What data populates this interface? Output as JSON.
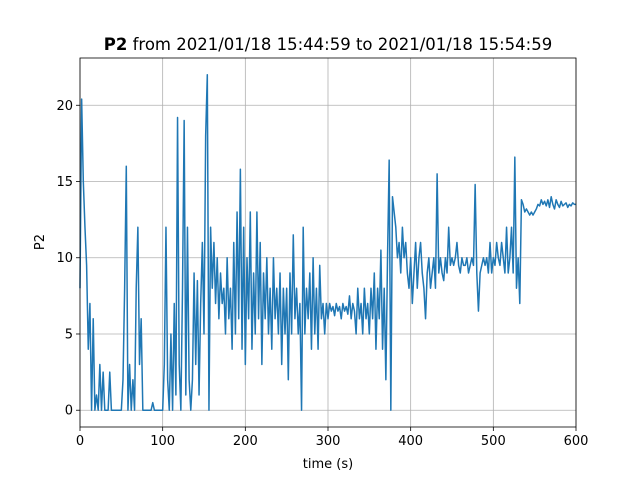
{
  "chart_data": {
    "type": "line",
    "title_parts": [
      "P2",
      "from 2021/01/18 15:44:59 to 2021/01/18 15:54:59"
    ],
    "x_label": "time (s)",
    "y_label": "P2",
    "color": "#1f77b4",
    "grid": true,
    "xlim": [
      0,
      600
    ],
    "ylim": [
      -1.1,
      23.1
    ],
    "xticks": [
      0,
      100,
      200,
      300,
      400,
      500,
      600
    ],
    "yticks": [
      0,
      5,
      10,
      15,
      20
    ],
    "x": [
      0,
      2,
      4,
      6,
      8,
      10,
      12,
      14,
      16,
      18,
      20,
      22,
      24,
      26,
      28,
      30,
      32,
      34,
      36,
      38,
      40,
      42,
      44,
      46,
      48,
      50,
      52,
      54,
      56,
      58,
      60,
      62,
      64,
      66,
      68,
      70,
      72,
      74,
      76,
      78,
      80,
      82,
      84,
      86,
      88,
      90,
      92,
      94,
      96,
      98,
      100,
      102,
      104,
      106,
      108,
      110,
      112,
      114,
      116,
      118,
      120,
      122,
      124,
      126,
      128,
      130,
      132,
      134,
      136,
      138,
      140,
      142,
      144,
      146,
      148,
      150,
      152,
      154,
      156,
      158,
      160,
      162,
      164,
      166,
      168,
      170,
      172,
      174,
      176,
      178,
      180,
      182,
      184,
      186,
      188,
      190,
      192,
      194,
      196,
      198,
      200,
      202,
      204,
      206,
      208,
      210,
      212,
      214,
      216,
      218,
      220,
      222,
      224,
      226,
      228,
      230,
      232,
      234,
      236,
      238,
      240,
      242,
      244,
      246,
      248,
      250,
      252,
      254,
      256,
      258,
      260,
      262,
      264,
      266,
      268,
      270,
      272,
      274,
      276,
      278,
      280,
      282,
      284,
      286,
      288,
      290,
      292,
      294,
      296,
      298,
      300,
      302,
      304,
      306,
      308,
      310,
      312,
      314,
      316,
      318,
      320,
      322,
      324,
      326,
      328,
      330,
      332,
      334,
      336,
      338,
      340,
      342,
      344,
      346,
      348,
      350,
      352,
      354,
      356,
      358,
      360,
      362,
      364,
      366,
      368,
      370,
      372,
      374,
      376,
      378,
      380,
      382,
      384,
      386,
      388,
      390,
      392,
      394,
      396,
      398,
      400,
      402,
      404,
      406,
      408,
      410,
      412,
      414,
      416,
      418,
      420,
      422,
      424,
      426,
      428,
      430,
      432,
      434,
      436,
      438,
      440,
      442,
      444,
      446,
      448,
      450,
      452,
      454,
      456,
      458,
      460,
      462,
      464,
      466,
      468,
      470,
      472,
      474,
      476,
      478,
      480,
      482,
      484,
      486,
      488,
      490,
      492,
      494,
      496,
      498,
      500,
      502,
      504,
      506,
      508,
      510,
      512,
      514,
      516,
      518,
      520,
      522,
      524,
      526,
      528,
      530,
      532,
      534,
      536,
      538,
      540,
      542,
      544,
      546,
      548,
      550,
      552,
      554,
      556,
      558,
      560,
      562,
      564,
      566,
      568,
      570,
      572,
      574,
      576,
      578,
      580,
      582,
      584,
      586,
      588,
      590,
      592,
      594,
      596,
      598,
      600
    ],
    "values": [
      8,
      20.4,
      15,
      12,
      9.5,
      4,
      7,
      0,
      6,
      0,
      1,
      0,
      3,
      0,
      2.5,
      0,
      0,
      0,
      2.5,
      0,
      0,
      0,
      0,
      0,
      0,
      0,
      2,
      8,
      16,
      0,
      3,
      0,
      2,
      0,
      8,
      12,
      3,
      6,
      0,
      0,
      0,
      0,
      0,
      0,
      0.5,
      0,
      0,
      0,
      0,
      0,
      0,
      3,
      12,
      2,
      0,
      5,
      0,
      7,
      1,
      19.2,
      3,
      0,
      8,
      19,
      1,
      12,
      2,
      0,
      2,
      9,
      3,
      8.5,
      1,
      7,
      11,
      5,
      18,
      22,
      0,
      12,
      8,
      11,
      7,
      10,
      6,
      9,
      7,
      8,
      5,
      10,
      6,
      8,
      4,
      11,
      5,
      13,
      6,
      15.8,
      4,
      12,
      3,
      10,
      6,
      13,
      4,
      9,
      5,
      13,
      6,
      11,
      3,
      9,
      6,
      10,
      5,
      8,
      4,
      10,
      6,
      8,
      5,
      9,
      3,
      8,
      5,
      8,
      2,
      9,
      5,
      11.5,
      6,
      8,
      5,
      7,
      0,
      12,
      5,
      8,
      6,
      9,
      4,
      10,
      5,
      8,
      4,
      9.5,
      6,
      7,
      5,
      7,
      6,
      7,
      6.5,
      6.8,
      6.2,
      7,
      6.5,
      6.8,
      6,
      7,
      6.5,
      6.8,
      6.3,
      7.5,
      6,
      7,
      6.5,
      5,
      8,
      6,
      7,
      5,
      8,
      6,
      7,
      5,
      8,
      6,
      9,
      4,
      8,
      6,
      10.5,
      4,
      8,
      2,
      10,
      16.4,
      0,
      14,
      13,
      12,
      10,
      11,
      9,
      12,
      10,
      11,
      9,
      8,
      10,
      7,
      9,
      11,
      8,
      10,
      11,
      9,
      8,
      6,
      9,
      10,
      8,
      9,
      10,
      8,
      15.5,
      9,
      10,
      9,
      8.5,
      10,
      9,
      12,
      9.5,
      10,
      9.5,
      10,
      11,
      9.5,
      9,
      10,
      9.5,
      9.5,
      10,
      9,
      9.5,
      10,
      9.5,
      14.8,
      9,
      6.5,
      9,
      9.5,
      10,
      9.5,
      10,
      9,
      11,
      9,
      10,
      9.5,
      11,
      10,
      9.5,
      11,
      10,
      9,
      12,
      9,
      10,
      12,
      9,
      16.6,
      8,
      10,
      7,
      13.8,
      13.5,
      13,
      13.2,
      13,
      12.8,
      13,
      12.8,
      13,
      13.2,
      13.5,
      13.4,
      13.8,
      13.5,
      13.7,
      13.4,
      13.8,
      13.3,
      14,
      13.5,
      13.2,
      13.8,
      13.5,
      13.3,
      13.7,
      13.4,
      13.5,
      13.6,
      13.3,
      13.5,
      13.4,
      13.6,
      13.5,
      13.5
    ]
  }
}
